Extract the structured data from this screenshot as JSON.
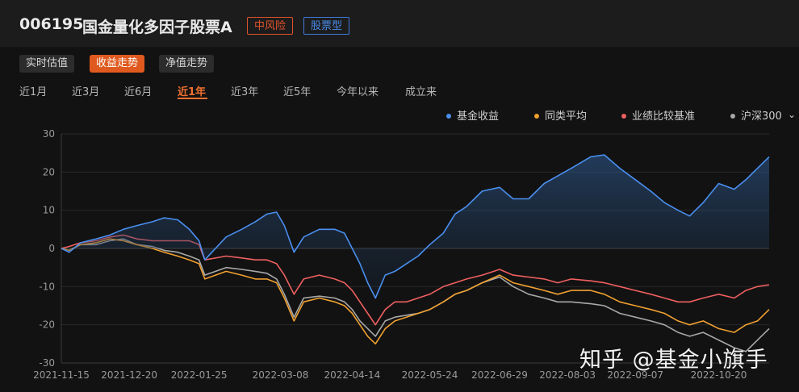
{
  "header": {
    "fund_code": "006195",
    "fund_name": "国金量化多因子股票A",
    "risk_tag": "中风险",
    "type_tag": "股票型"
  },
  "view_tabs": [
    {
      "label": "实时估值",
      "active": false
    },
    {
      "label": "收益走势",
      "active": true
    },
    {
      "label": "净值走势",
      "active": false
    }
  ],
  "range_tabs": [
    {
      "label": "近1月",
      "active": false
    },
    {
      "label": "近3月",
      "active": false
    },
    {
      "label": "近6月",
      "active": false
    },
    {
      "label": "近1年",
      "active": true
    },
    {
      "label": "近3年",
      "active": false
    },
    {
      "label": "近5年",
      "active": false
    },
    {
      "label": "今年以来",
      "active": false
    },
    {
      "label": "成立来",
      "active": false
    }
  ],
  "watermark": "知乎 @基金小旗手",
  "colors": {
    "fund": "#4a8ff0",
    "peer": "#f0a030",
    "benchmark": "#f06060",
    "hs300": "#a8a8a8",
    "accent": "#e05a1f"
  },
  "chart_data": {
    "type": "line",
    "x_ticks": [
      "2021-11-15",
      "2021-12-20",
      "2022-01-25",
      "2022-03-08",
      "2022-04-14",
      "2022-05-24",
      "2022-06-29",
      "2022-08-03",
      "2022-09-07",
      "2022-10-20"
    ],
    "ylim": [
      -30,
      30
    ],
    "y_ticks": [
      30,
      20,
      10,
      0,
      -10,
      -20,
      -30
    ],
    "x_range": [
      "2021-11-15",
      "2022-11-15"
    ],
    "grid": true,
    "legend_position": "top-right",
    "series": [
      {
        "name": "基金收益",
        "color": "#4a8ff0",
        "area": true,
        "points": [
          [
            "2021-11-15",
            0
          ],
          [
            "2021-11-19",
            -1
          ],
          [
            "2021-11-25",
            1.5
          ],
          [
            "2021-12-03",
            2.5
          ],
          [
            "2021-12-10",
            3.5
          ],
          [
            "2021-12-17",
            5
          ],
          [
            "2021-12-24",
            6
          ],
          [
            "2022-01-01",
            7
          ],
          [
            "2022-01-07",
            8
          ],
          [
            "2022-01-14",
            7.5
          ],
          [
            "2022-01-20",
            5
          ],
          [
            "2022-01-25",
            2
          ],
          [
            "2022-01-28",
            -3
          ],
          [
            "2022-02-08",
            3
          ],
          [
            "2022-02-16",
            5
          ],
          [
            "2022-02-23",
            7
          ],
          [
            "2022-03-01",
            9
          ],
          [
            "2022-03-06",
            9.5
          ],
          [
            "2022-03-10",
            6
          ],
          [
            "2022-03-15",
            -1
          ],
          [
            "2022-03-20",
            3
          ],
          [
            "2022-03-28",
            5
          ],
          [
            "2022-04-05",
            5
          ],
          [
            "2022-04-10",
            4
          ],
          [
            "2022-04-14",
            0
          ],
          [
            "2022-04-18",
            -4
          ],
          [
            "2022-04-22",
            -9
          ],
          [
            "2022-04-26",
            -13
          ],
          [
            "2022-05-01",
            -7
          ],
          [
            "2022-05-06",
            -6
          ],
          [
            "2022-05-12",
            -4
          ],
          [
            "2022-05-18",
            -2
          ],
          [
            "2022-05-24",
            1
          ],
          [
            "2022-05-31",
            4
          ],
          [
            "2022-06-06",
            9
          ],
          [
            "2022-06-12",
            11
          ],
          [
            "2022-06-20",
            15
          ],
          [
            "2022-06-29",
            16
          ],
          [
            "2022-07-06",
            13
          ],
          [
            "2022-07-14",
            13
          ],
          [
            "2022-07-22",
            17
          ],
          [
            "2022-07-29",
            19
          ],
          [
            "2022-08-05",
            21
          ],
          [
            "2022-08-15",
            24
          ],
          [
            "2022-08-22",
            24.5
          ],
          [
            "2022-08-30",
            21
          ],
          [
            "2022-09-07",
            18
          ],
          [
            "2022-09-15",
            15
          ],
          [
            "2022-09-22",
            12
          ],
          [
            "2022-09-29",
            10
          ],
          [
            "2022-10-05",
            8.5
          ],
          [
            "2022-10-12",
            12
          ],
          [
            "2022-10-20",
            17
          ],
          [
            "2022-10-28",
            15.5
          ],
          [
            "2022-11-03",
            18
          ],
          [
            "2022-11-09",
            21
          ],
          [
            "2022-11-15",
            24
          ]
        ]
      },
      {
        "name": "同类平均",
        "color": "#f0a030",
        "area": false,
        "points": [
          [
            "2021-11-15",
            0
          ],
          [
            "2021-11-19",
            -0.5
          ],
          [
            "2021-11-25",
            1
          ],
          [
            "2021-12-03",
            1.5
          ],
          [
            "2021-12-10",
            2.5
          ],
          [
            "2021-12-17",
            2
          ],
          [
            "2021-12-24",
            1
          ],
          [
            "2022-01-01",
            0
          ],
          [
            "2022-01-07",
            -1
          ],
          [
            "2022-01-14",
            -2
          ],
          [
            "2022-01-20",
            -3
          ],
          [
            "2022-01-25",
            -4
          ],
          [
            "2022-01-28",
            -8
          ],
          [
            "2022-02-08",
            -6
          ],
          [
            "2022-02-16",
            -7
          ],
          [
            "2022-02-23",
            -8
          ],
          [
            "2022-03-01",
            -8
          ],
          [
            "2022-03-06",
            -9
          ],
          [
            "2022-03-10",
            -13
          ],
          [
            "2022-03-15",
            -19
          ],
          [
            "2022-03-20",
            -14
          ],
          [
            "2022-03-28",
            -13
          ],
          [
            "2022-04-05",
            -14
          ],
          [
            "2022-04-10",
            -15
          ],
          [
            "2022-04-14",
            -17
          ],
          [
            "2022-04-18",
            -20
          ],
          [
            "2022-04-22",
            -23
          ],
          [
            "2022-04-26",
            -25
          ],
          [
            "2022-05-01",
            -21
          ],
          [
            "2022-05-06",
            -19
          ],
          [
            "2022-05-12",
            -18
          ],
          [
            "2022-05-18",
            -17
          ],
          [
            "2022-05-24",
            -16
          ],
          [
            "2022-05-31",
            -14
          ],
          [
            "2022-06-06",
            -12
          ],
          [
            "2022-06-12",
            -11
          ],
          [
            "2022-06-20",
            -9
          ],
          [
            "2022-06-29",
            -7
          ],
          [
            "2022-07-06",
            -9
          ],
          [
            "2022-07-14",
            -10
          ],
          [
            "2022-07-22",
            -11
          ],
          [
            "2022-07-29",
            -12
          ],
          [
            "2022-08-05",
            -11
          ],
          [
            "2022-08-15",
            -11
          ],
          [
            "2022-08-22",
            -12
          ],
          [
            "2022-08-30",
            -14
          ],
          [
            "2022-09-07",
            -15
          ],
          [
            "2022-09-15",
            -16
          ],
          [
            "2022-09-22",
            -17
          ],
          [
            "2022-09-29",
            -19
          ],
          [
            "2022-10-05",
            -20
          ],
          [
            "2022-10-12",
            -19
          ],
          [
            "2022-10-20",
            -21
          ],
          [
            "2022-10-28",
            -22
          ],
          [
            "2022-11-03",
            -20
          ],
          [
            "2022-11-09",
            -19
          ],
          [
            "2022-11-15",
            -16
          ]
        ]
      },
      {
        "name": "业绩比较基准",
        "color": "#f06060",
        "area": false,
        "points": [
          [
            "2021-11-15",
            0
          ],
          [
            "2021-11-19",
            0.5
          ],
          [
            "2021-11-25",
            1.5
          ],
          [
            "2021-12-03",
            2
          ],
          [
            "2021-12-10",
            3
          ],
          [
            "2021-12-17",
            3.5
          ],
          [
            "2021-12-24",
            2.5
          ],
          [
            "2022-01-01",
            2
          ],
          [
            "2022-01-07",
            2
          ],
          [
            "2022-01-14",
            2
          ],
          [
            "2022-01-20",
            2
          ],
          [
            "2022-01-25",
            1
          ],
          [
            "2022-01-28",
            -3
          ],
          [
            "2022-02-08",
            -2
          ],
          [
            "2022-02-16",
            -2.5
          ],
          [
            "2022-02-23",
            -3
          ],
          [
            "2022-03-01",
            -3
          ],
          [
            "2022-03-06",
            -4
          ],
          [
            "2022-03-10",
            -7
          ],
          [
            "2022-03-15",
            -12
          ],
          [
            "2022-03-20",
            -8
          ],
          [
            "2022-03-28",
            -7
          ],
          [
            "2022-04-05",
            -8
          ],
          [
            "2022-04-10",
            -9
          ],
          [
            "2022-04-14",
            -11
          ],
          [
            "2022-04-18",
            -14
          ],
          [
            "2022-04-22",
            -17
          ],
          [
            "2022-04-26",
            -20
          ],
          [
            "2022-05-01",
            -16
          ],
          [
            "2022-05-06",
            -14
          ],
          [
            "2022-05-12",
            -14
          ],
          [
            "2022-05-18",
            -13
          ],
          [
            "2022-05-24",
            -12
          ],
          [
            "2022-05-31",
            -10
          ],
          [
            "2022-06-06",
            -9
          ],
          [
            "2022-06-12",
            -8
          ],
          [
            "2022-06-20",
            -7
          ],
          [
            "2022-06-29",
            -5.5
          ],
          [
            "2022-07-06",
            -7
          ],
          [
            "2022-07-14",
            -7.5
          ],
          [
            "2022-07-22",
            -8
          ],
          [
            "2022-07-29",
            -9
          ],
          [
            "2022-08-05",
            -8
          ],
          [
            "2022-08-15",
            -8.5
          ],
          [
            "2022-08-22",
            -9
          ],
          [
            "2022-08-30",
            -10
          ],
          [
            "2022-09-07",
            -11
          ],
          [
            "2022-09-15",
            -12
          ],
          [
            "2022-09-22",
            -13
          ],
          [
            "2022-09-29",
            -14
          ],
          [
            "2022-10-05",
            -14
          ],
          [
            "2022-10-12",
            -13
          ],
          [
            "2022-10-20",
            -12
          ],
          [
            "2022-10-28",
            -13
          ],
          [
            "2022-11-03",
            -11
          ],
          [
            "2022-11-09",
            -10
          ],
          [
            "2022-11-15",
            -9.5
          ]
        ]
      },
      {
        "name": "沪深300",
        "color": "#a8a8a8",
        "area": false,
        "points": [
          [
            "2021-11-15",
            0
          ],
          [
            "2021-11-19",
            -0.5
          ],
          [
            "2021-11-25",
            1
          ],
          [
            "2021-12-03",
            1
          ],
          [
            "2021-12-10",
            2
          ],
          [
            "2021-12-17",
            2.5
          ],
          [
            "2021-12-24",
            1
          ],
          [
            "2022-01-01",
            0.5
          ],
          [
            "2022-01-07",
            -0.5
          ],
          [
            "2022-01-14",
            -1
          ],
          [
            "2022-01-20",
            -2
          ],
          [
            "2022-01-25",
            -3
          ],
          [
            "2022-01-28",
            -7
          ],
          [
            "2022-02-08",
            -5
          ],
          [
            "2022-02-16",
            -5.5
          ],
          [
            "2022-02-23",
            -6
          ],
          [
            "2022-03-01",
            -6.5
          ],
          [
            "2022-03-06",
            -8
          ],
          [
            "2022-03-10",
            -12
          ],
          [
            "2022-03-15",
            -18
          ],
          [
            "2022-03-20",
            -13
          ],
          [
            "2022-03-28",
            -12.5
          ],
          [
            "2022-04-05",
            -13
          ],
          [
            "2022-04-10",
            -14
          ],
          [
            "2022-04-14",
            -16
          ],
          [
            "2022-04-18",
            -19
          ],
          [
            "2022-04-22",
            -21
          ],
          [
            "2022-04-26",
            -23
          ],
          [
            "2022-05-01",
            -19
          ],
          [
            "2022-05-06",
            -18
          ],
          [
            "2022-05-12",
            -17.5
          ],
          [
            "2022-05-18",
            -17
          ],
          [
            "2022-05-24",
            -16
          ],
          [
            "2022-05-31",
            -14
          ],
          [
            "2022-06-06",
            -12
          ],
          [
            "2022-06-12",
            -11
          ],
          [
            "2022-06-20",
            -9
          ],
          [
            "2022-06-29",
            -7.5
          ],
          [
            "2022-07-06",
            -10
          ],
          [
            "2022-07-14",
            -12
          ],
          [
            "2022-07-22",
            -13
          ],
          [
            "2022-07-29",
            -14
          ],
          [
            "2022-08-05",
            -14
          ],
          [
            "2022-08-15",
            -14.5
          ],
          [
            "2022-08-22",
            -15
          ],
          [
            "2022-08-30",
            -17
          ],
          [
            "2022-09-07",
            -18
          ],
          [
            "2022-09-15",
            -19
          ],
          [
            "2022-09-22",
            -20
          ],
          [
            "2022-09-29",
            -22
          ],
          [
            "2022-10-05",
            -23
          ],
          [
            "2022-10-12",
            -22
          ],
          [
            "2022-10-20",
            -24
          ],
          [
            "2022-10-28",
            -26
          ],
          [
            "2022-11-03",
            -27
          ],
          [
            "2022-11-09",
            -24
          ],
          [
            "2022-11-15",
            -21
          ]
        ]
      }
    ]
  }
}
